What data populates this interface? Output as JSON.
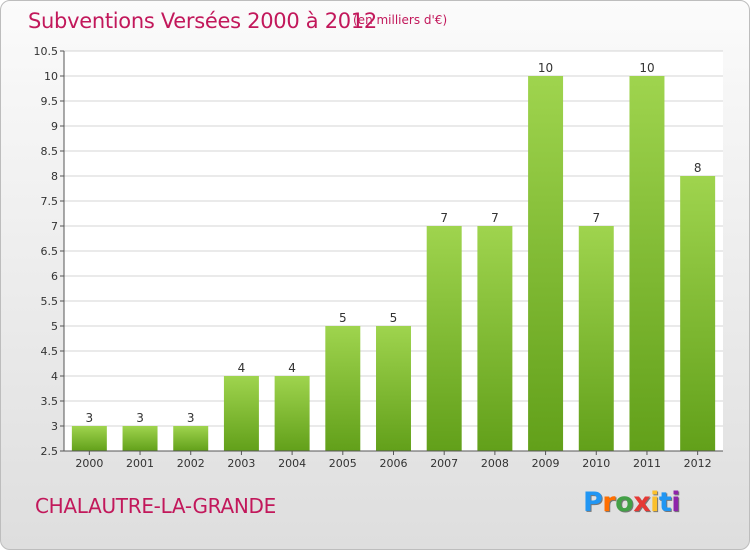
{
  "header": {
    "title": "Subventions Versées 2000 à 2012",
    "unit": "(en milliers d'€)"
  },
  "footer": {
    "commune": "CHALAUTRE-LA-GRANDE",
    "logo_letters": [
      "P",
      "r",
      "o",
      "x",
      "i",
      "t",
      "i"
    ],
    "logo_colors": [
      "#2196f3",
      "#ff6f00",
      "#43a047",
      "#e53935",
      "#fbc02d",
      "#2196f3",
      "#8e24aa"
    ]
  },
  "chart_data": {
    "type": "bar",
    "title": "Subventions Versées 2000 à 2012",
    "unit_label": "(en milliers d'€)",
    "categories": [
      "2000",
      "2001",
      "2002",
      "2003",
      "2004",
      "2005",
      "2006",
      "2007",
      "2008",
      "2009",
      "2010",
      "2011",
      "2012"
    ],
    "values": [
      3,
      3,
      3,
      4,
      4,
      5,
      5,
      7,
      7,
      10,
      7,
      10,
      8
    ],
    "data_labels": [
      "3",
      "3",
      "3",
      "4",
      "4",
      "5",
      "5",
      "7",
      "7",
      "10",
      "7",
      "10",
      "8"
    ],
    "ylim": [
      2.5,
      10.5
    ],
    "yticks": [
      "2.5",
      "3",
      "3.5",
      "4",
      "4.5",
      "5",
      "5.5",
      "6",
      "6.5",
      "7",
      "7.5",
      "8",
      "8.5",
      "9",
      "9.5",
      "10",
      "10.5"
    ],
    "grid": true,
    "bar_color_top": "#9fd44e",
    "bar_color_bottom": "#62a01a"
  }
}
